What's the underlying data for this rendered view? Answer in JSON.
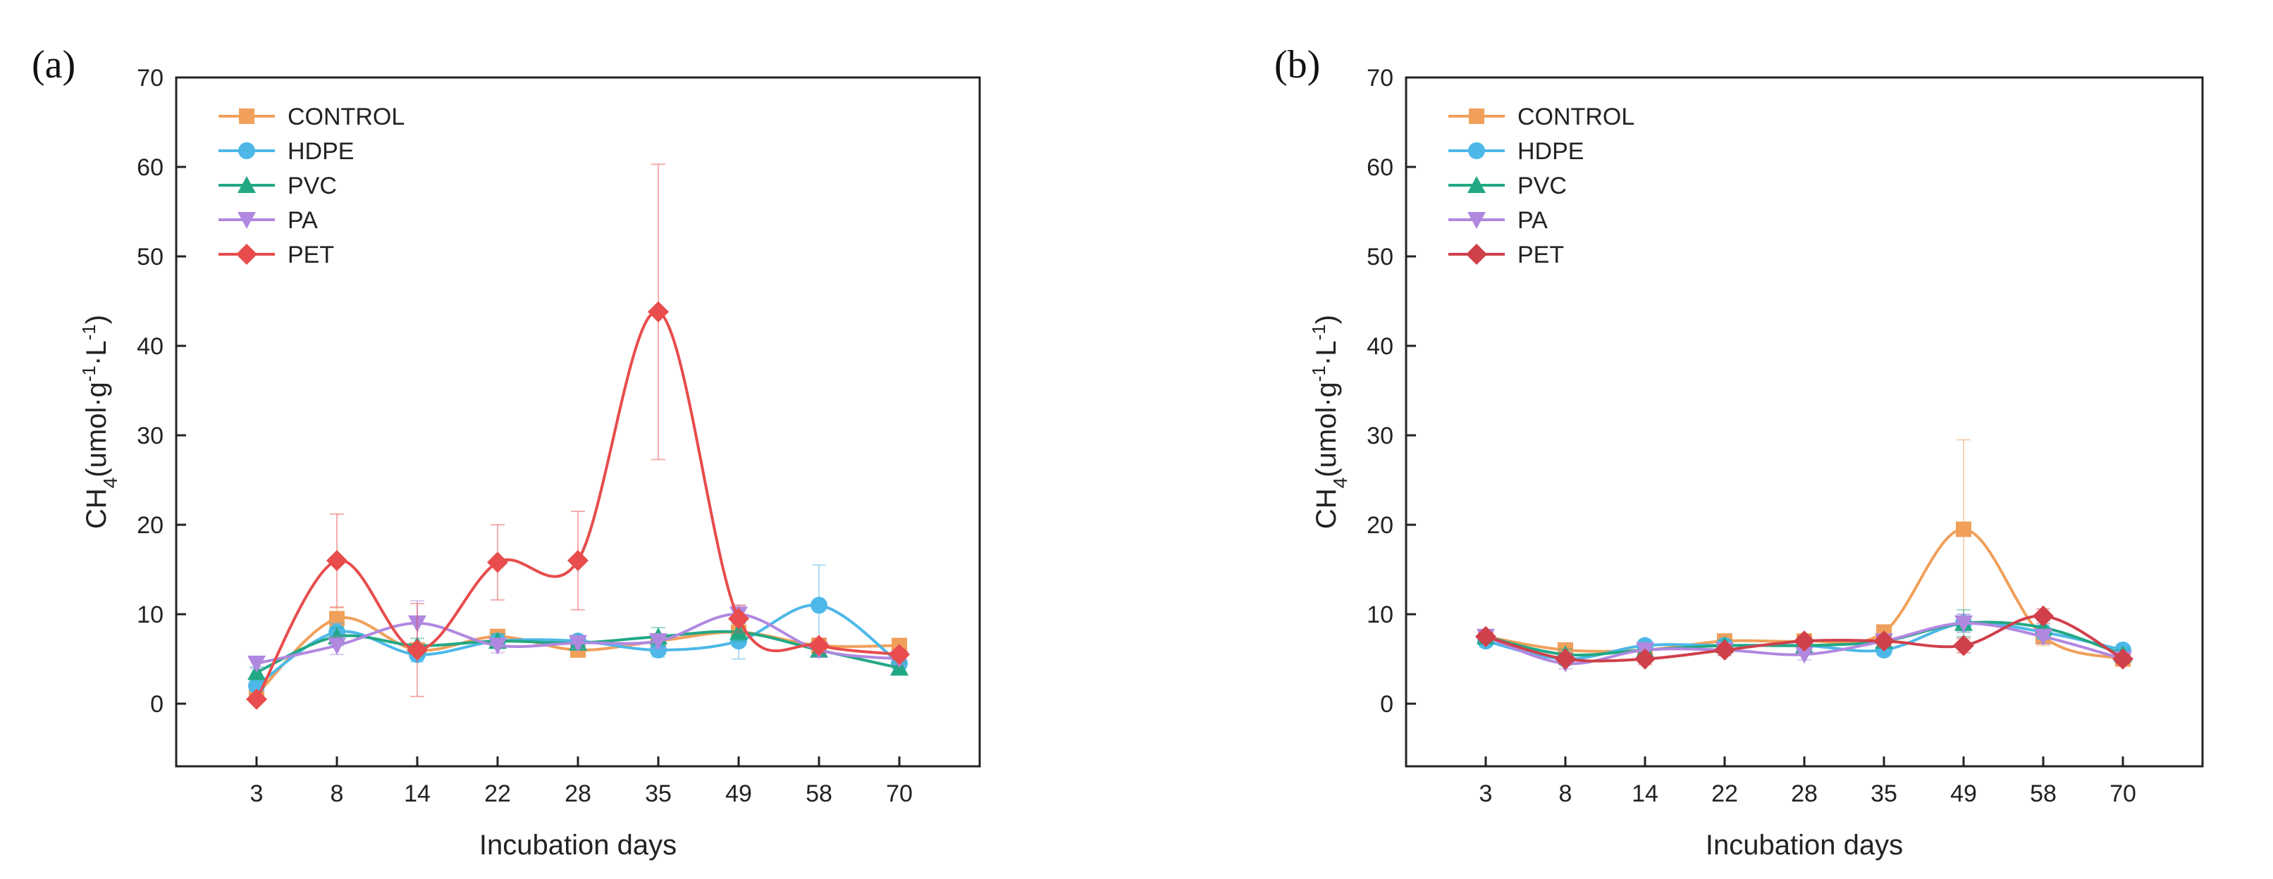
{
  "chart_data": [
    {
      "type": "line",
      "panel_label": "(a)",
      "title": "",
      "xlabel": "Incubation days",
      "ylabel_main": "CH",
      "ylabel_sub": "4",
      "ylabel_rest_a": "(umol·g",
      "ylabel_sup1": "-1",
      "ylabel_rest_b": "·L",
      "ylabel_sup2": "-1",
      "ylabel_close": ")",
      "categories": [
        "3",
        "8",
        "14",
        "22",
        "28",
        "35",
        "49",
        "58",
        "70"
      ],
      "ylim": [
        -7,
        70
      ],
      "yticks": [
        0,
        10,
        20,
        30,
        40,
        50,
        60,
        70
      ],
      "legend_position": "top-left",
      "series": [
        {
          "name": "CONTROL",
          "color": "#F0A05A",
          "marker": "square",
          "values": [
            1.0,
            9.5,
            6.0,
            7.5,
            6.0,
            7.0,
            8.0,
            6.5,
            6.5
          ],
          "errors": [
            0.5,
            1.2,
            0.8,
            0.8,
            0.5,
            0.8,
            1.0,
            0.8,
            0.6
          ]
        },
        {
          "name": "HDPE",
          "color": "#4DB8E8",
          "marker": "circle",
          "values": [
            2.0,
            8.0,
            5.5,
            7.0,
            7.0,
            6.0,
            7.0,
            11.0,
            4.5
          ],
          "errors": [
            0.5,
            1.0,
            0.8,
            0.8,
            0.6,
            0.8,
            2.0,
            4.5,
            0.6
          ]
        },
        {
          "name": "PVC",
          "color": "#22A884",
          "marker": "triangle-up",
          "values": [
            3.5,
            7.5,
            6.5,
            7.0,
            6.8,
            7.5,
            8.0,
            6.0,
            4.0
          ],
          "errors": [
            0.6,
            1.0,
            0.8,
            0.8,
            0.6,
            1.0,
            1.0,
            0.8,
            0.6
          ]
        },
        {
          "name": "PA",
          "color": "#B088E0",
          "marker": "triangle-down",
          "values": [
            4.5,
            6.5,
            9.0,
            6.5,
            6.8,
            7.0,
            10.0,
            6.0,
            5.0
          ],
          "errors": [
            0.6,
            1.0,
            2.5,
            0.8,
            0.6,
            0.8,
            1.0,
            0.8,
            0.6
          ]
        },
        {
          "name": "PET",
          "color": "#E84C4C",
          "marker": "diamond",
          "values": [
            0.5,
            16.0,
            6.0,
            15.8,
            16.0,
            43.8,
            9.5,
            6.5,
            5.5
          ],
          "errors": [
            0.3,
            5.2,
            5.2,
            4.2,
            5.5,
            16.5,
            1.5,
            0.8,
            0.6
          ]
        }
      ]
    },
    {
      "type": "line",
      "panel_label": "(b)",
      "title": "",
      "xlabel": "Incubation days",
      "ylabel_main": "CH",
      "ylabel_sub": "4",
      "ylabel_rest_a": "(umol·g",
      "ylabel_sup1": "-1",
      "ylabel_rest_b": "·L",
      "ylabel_sup2": "-1",
      "ylabel_close": ")",
      "categories": [
        "3",
        "8",
        "14",
        "22",
        "28",
        "35",
        "49",
        "58",
        "70"
      ],
      "ylim": [
        -7,
        70
      ],
      "yticks": [
        0,
        10,
        20,
        30,
        40,
        50,
        60,
        70
      ],
      "legend_position": "top-left",
      "series": [
        {
          "name": "CONTROL",
          "color": "#F0A05A",
          "marker": "square",
          "values": [
            7.5,
            6.0,
            6.0,
            7.0,
            7.0,
            8.0,
            19.5,
            7.5,
            5.0
          ],
          "errors": [
            0.5,
            0.6,
            0.6,
            0.6,
            0.6,
            0.8,
            10.0,
            1.0,
            0.5
          ]
        },
        {
          "name": "HDPE",
          "color": "#4DB8E8",
          "marker": "circle",
          "values": [
            7.0,
            5.0,
            6.5,
            6.5,
            6.5,
            6.0,
            9.0,
            8.0,
            6.0
          ],
          "errors": [
            0.5,
            0.6,
            0.6,
            0.6,
            0.6,
            0.6,
            1.0,
            0.8,
            0.5
          ]
        },
        {
          "name": "PVC",
          "color": "#22A884",
          "marker": "triangle-up",
          "values": [
            7.5,
            5.5,
            6.0,
            6.5,
            6.5,
            7.0,
            9.0,
            8.5,
            5.5
          ],
          "errors": [
            0.5,
            0.6,
            0.6,
            0.6,
            0.6,
            0.6,
            1.5,
            0.8,
            0.5
          ]
        },
        {
          "name": "PA",
          "color": "#B088E0",
          "marker": "triangle-down",
          "values": [
            7.5,
            4.5,
            6.0,
            6.0,
            5.5,
            7.0,
            9.0,
            7.5,
            5.0
          ],
          "errors": [
            0.5,
            0.6,
            0.6,
            0.6,
            0.6,
            0.6,
            1.0,
            0.8,
            0.5
          ]
        },
        {
          "name": "PET",
          "color": "#D0404A",
          "marker": "diamond",
          "values": [
            7.5,
            5.0,
            5.0,
            6.0,
            7.0,
            7.0,
            6.5,
            9.8,
            5.0
          ],
          "errors": [
            0.5,
            0.6,
            0.6,
            0.6,
            0.6,
            0.6,
            0.8,
            0.8,
            0.5
          ]
        }
      ]
    }
  ]
}
